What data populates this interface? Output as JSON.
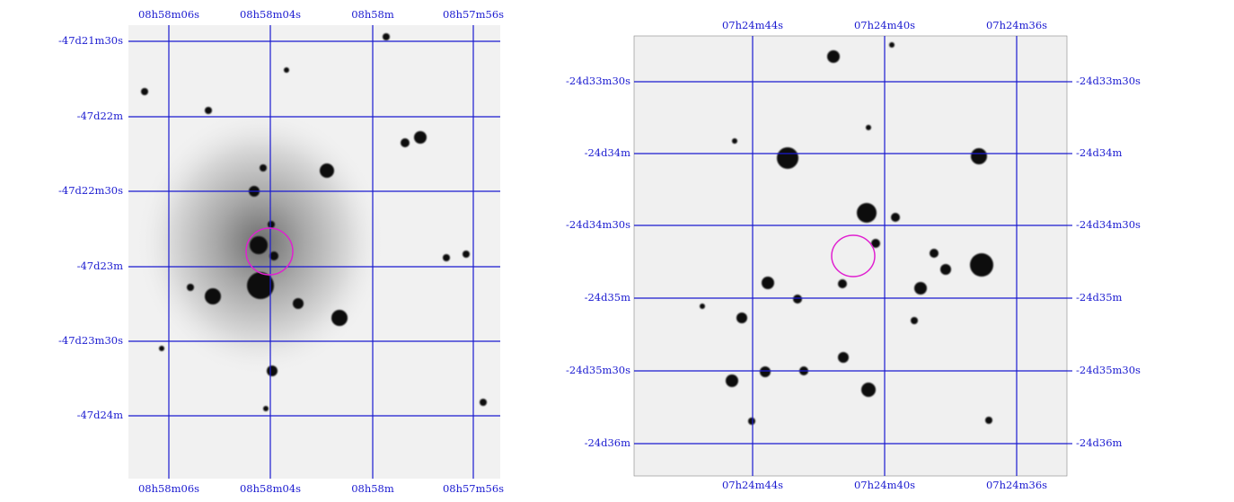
{
  "panels": [
    {
      "top_labels": [
        "08h58m06s",
        "08h58m04s",
        "08h58m",
        "08h57m56s"
      ],
      "bottom_labels": [
        "08h58m06s",
        "08h58m04s",
        "08h58m",
        "08h57m56s"
      ],
      "left_labels": [
        "-47d21m30s",
        "-47d22m",
        "-47d22m30s",
        "-47d23m",
        "-47d23m30s",
        "-47d24m"
      ]
    },
    {
      "top_labels": [
        "07h24m44s",
        "07h24m40s",
        "07h24m36s"
      ],
      "bottom_labels": [
        "07h24m44s",
        "07h24m40s",
        "07h24m36s"
      ],
      "left_labels": [
        "-24d33m30s",
        "-24d34m",
        "-24d34m30s",
        "-24d35m",
        "-24d35m30s",
        "-24d36m"
      ],
      "right_labels": [
        "-24d33m30s",
        "-24d34m",
        "-24d34m30s",
        "-24d35m",
        "-24d35m30s",
        "-24d36m"
      ]
    }
  ]
}
